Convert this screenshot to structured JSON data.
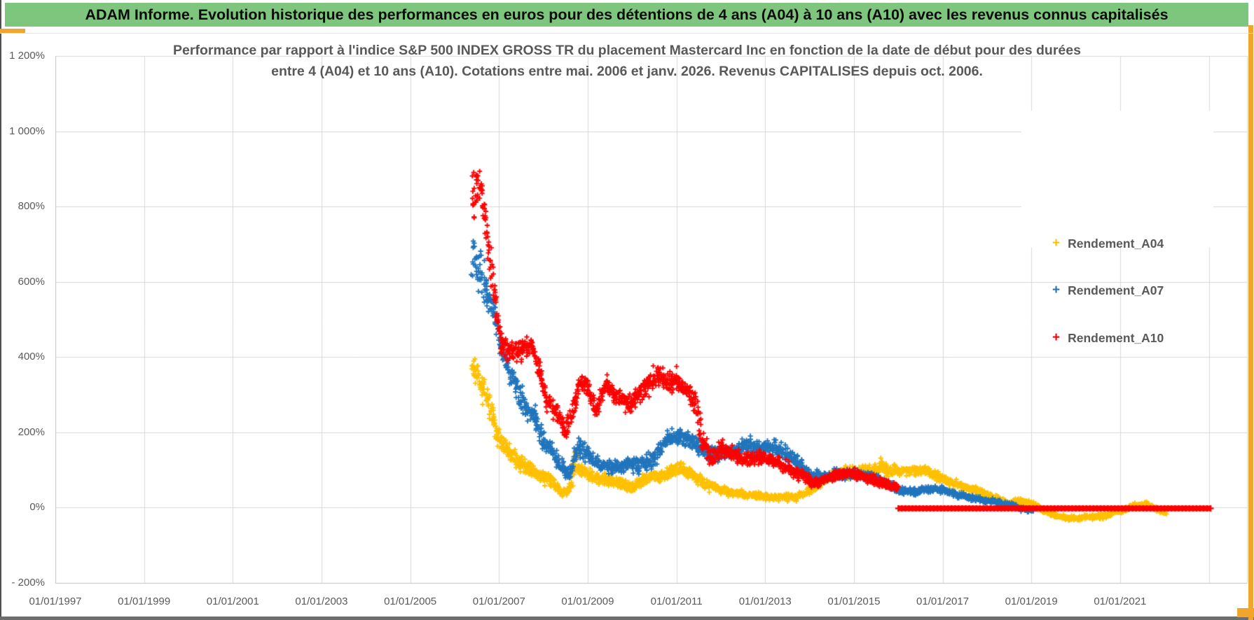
{
  "header": {
    "title": "ADAM Informe. Evolution historique des performances en euros pour des détentions de 4 ans (A04) à 10 ans (A10) avec les revenus connus capitalisés",
    "bg_color": "#7EC67D",
    "text_color": "#0b0b0b"
  },
  "page": {
    "gold_border_color": "#F0A62C",
    "left_edge_color": "#4f4f4f",
    "bottom_edge_color": "#6e6e6e"
  },
  "chart_data": {
    "type": "scatter",
    "title_line1": "Performance par rapport à l'indice S&P 500 INDEX GROSS TR  du placement Mastercard Inc en fonction de la date de début pour des durées",
    "title_line2": "entre 4 (A04) et 10 ans (A10). Cotations entre mai. 2006 et janv. 2026. Revenus CAPITALISES depuis oct. 2006.",
    "grid": true,
    "grid_color": "#D9D9D9",
    "axis_line_color": "#BFBFBF",
    "x_axis": {
      "type": "date",
      "min_year": 1997,
      "max_year": 2023.86,
      "tick_step_years": 2,
      "tick_labels": [
        "01/01/1997",
        "01/01/1999",
        "01/01/2001",
        "01/01/2003",
        "01/01/2005",
        "01/01/2007",
        "01/01/2009",
        "01/01/2011",
        "01/01/2013",
        "01/01/2015",
        "01/01/2017",
        "01/01/2019",
        "01/01/2021"
      ]
    },
    "y_axis": {
      "min": -200,
      "max": 1200,
      "step": 200,
      "unit": "%",
      "tick_labels": [
        "- 200%",
        "0%",
        "200%",
        "400%",
        "600%",
        "800%",
        "1 000%",
        "1 200%"
      ]
    },
    "legend": {
      "position": "right-overlay",
      "entries": [
        "Rendement_A04",
        "Rendement_A07",
        "Rendement_A10"
      ]
    },
    "series": [
      {
        "name": "Rendement_A04",
        "color": "#FFC000",
        "marker": "plus",
        "points_format": [
          "start_year_decimal",
          "performance_pct_center",
          "vertical_spread_pct"
        ],
        "points": [
          [
            2006.4,
            385,
            45
          ],
          [
            2006.6,
            330,
            50
          ],
          [
            2006.8,
            270,
            55
          ],
          [
            2007.0,
            180,
            35
          ],
          [
            2007.2,
            155,
            38
          ],
          [
            2007.45,
            120,
            30
          ],
          [
            2007.7,
            100,
            28
          ],
          [
            2007.95,
            85,
            25
          ],
          [
            2008.2,
            70,
            22
          ],
          [
            2008.45,
            40,
            18
          ],
          [
            2008.6,
            50,
            20
          ],
          [
            2008.72,
            120,
            55
          ],
          [
            2008.9,
            95,
            25
          ],
          [
            2009.1,
            80,
            20
          ],
          [
            2009.4,
            75,
            20
          ],
          [
            2009.7,
            65,
            20
          ],
          [
            2010.0,
            52,
            20
          ],
          [
            2010.3,
            80,
            25
          ],
          [
            2010.6,
            82,
            22
          ],
          [
            2010.9,
            100,
            25
          ],
          [
            2011.1,
            105,
            25
          ],
          [
            2011.3,
            92,
            22
          ],
          [
            2011.6,
            65,
            22
          ],
          [
            2011.9,
            52,
            17
          ],
          [
            2012.2,
            40,
            15
          ],
          [
            2012.6,
            34,
            14
          ],
          [
            2013.0,
            30,
            13
          ],
          [
            2013.4,
            28,
            13
          ],
          [
            2013.7,
            28,
            13
          ],
          [
            2014.0,
            45,
            15
          ],
          [
            2014.4,
            80,
            20
          ],
          [
            2014.8,
            92,
            22
          ],
          [
            2015.2,
            95,
            22
          ],
          [
            2015.55,
            100,
            25
          ],
          [
            2015.63,
            115,
            30
          ],
          [
            2015.75,
            98,
            22
          ],
          [
            2016.0,
            98,
            20
          ],
          [
            2016.4,
            100,
            18
          ],
          [
            2016.7,
            95,
            20
          ],
          [
            2017.0,
            75,
            18
          ],
          [
            2017.4,
            58,
            15
          ],
          [
            2017.8,
            45,
            14
          ],
          [
            2018.1,
            28,
            13
          ],
          [
            2018.5,
            12,
            12
          ],
          [
            2018.8,
            20,
            12
          ],
          [
            2019.1,
            3,
            10
          ],
          [
            2019.4,
            -15,
            10
          ],
          [
            2019.8,
            -29,
            10
          ],
          [
            2020.2,
            -26,
            10
          ],
          [
            2020.6,
            -22,
            10
          ],
          [
            2021.0,
            -10,
            10
          ],
          [
            2021.3,
            5,
            9
          ],
          [
            2021.6,
            8,
            9
          ],
          [
            2021.8,
            -3,
            9
          ],
          [
            2022.05,
            -15,
            8
          ]
        ]
      },
      {
        "name": "Rendement_A07",
        "color": "#2175BC",
        "marker": "plus",
        "points_format": [
          "start_year_decimal",
          "performance_pct_center",
          "vertical_spread_pct"
        ],
        "points": [
          [
            2006.4,
            690,
            110
          ],
          [
            2006.55,
            640,
            90
          ],
          [
            2006.7,
            580,
            60
          ],
          [
            2006.9,
            510,
            50
          ],
          [
            2007.05,
            425,
            45
          ],
          [
            2007.2,
            375,
            45
          ],
          [
            2007.4,
            315,
            45
          ],
          [
            2007.6,
            265,
            40
          ],
          [
            2007.8,
            245,
            40
          ],
          [
            2008.0,
            175,
            38
          ],
          [
            2008.2,
            150,
            32
          ],
          [
            2008.45,
            100,
            30
          ],
          [
            2008.6,
            88,
            26
          ],
          [
            2008.8,
            165,
            40
          ],
          [
            2009.0,
            140,
            30
          ],
          [
            2009.3,
            115,
            26
          ],
          [
            2009.6,
            105,
            25
          ],
          [
            2009.9,
            120,
            28
          ],
          [
            2010.2,
            110,
            30
          ],
          [
            2010.5,
            130,
            30
          ],
          [
            2010.8,
            185,
            32
          ],
          [
            2011.1,
            190,
            28
          ],
          [
            2011.35,
            180,
            28
          ],
          [
            2011.6,
            150,
            40
          ],
          [
            2011.8,
            140,
            28
          ],
          [
            2012.0,
            142,
            28
          ],
          [
            2012.3,
            148,
            28
          ],
          [
            2012.6,
            168,
            30
          ],
          [
            2012.9,
            160,
            30
          ],
          [
            2013.2,
            158,
            30
          ],
          [
            2013.5,
            140,
            28
          ],
          [
            2013.8,
            115,
            25
          ],
          [
            2014.0,
            85,
            25
          ],
          [
            2014.3,
            80,
            20
          ],
          [
            2014.6,
            88,
            20
          ],
          [
            2015.0,
            90,
            18
          ],
          [
            2015.4,
            85,
            18
          ],
          [
            2015.7,
            68,
            18
          ],
          [
            2016.0,
            46,
            16
          ],
          [
            2016.3,
            42,
            14
          ],
          [
            2016.7,
            50,
            12
          ],
          [
            2017.0,
            48,
            12
          ],
          [
            2017.3,
            35,
            10
          ],
          [
            2017.7,
            25,
            10
          ],
          [
            2018.0,
            18,
            10
          ],
          [
            2018.3,
            12,
            10
          ],
          [
            2018.6,
            5,
            10
          ],
          [
            2018.85,
            -5,
            9
          ],
          [
            2019.05,
            -9,
            8
          ]
        ]
      },
      {
        "name": "Rendement_A10",
        "color": "#FF0000",
        "marker": "plus",
        "points_format": [
          "start_year_decimal",
          "performance_pct_center",
          "vertical_spread_pct"
        ],
        "points": [
          [
            2006.4,
            830,
            110
          ],
          [
            2006.6,
            850,
            100
          ],
          [
            2006.75,
            700,
            80
          ],
          [
            2006.9,
            580,
            60
          ],
          [
            2007.0,
            465,
            45
          ],
          [
            2007.1,
            430,
            50
          ],
          [
            2007.3,
            410,
            55
          ],
          [
            2007.5,
            420,
            40
          ],
          [
            2007.75,
            430,
            30
          ],
          [
            2007.9,
            370,
            40
          ],
          [
            2008.1,
            280,
            35
          ],
          [
            2008.3,
            255,
            30
          ],
          [
            2008.5,
            195,
            30
          ],
          [
            2008.7,
            275,
            40
          ],
          [
            2008.85,
            340,
            40
          ],
          [
            2009.0,
            315,
            35
          ],
          [
            2009.2,
            250,
            35
          ],
          [
            2009.4,
            330,
            30
          ],
          [
            2009.6,
            300,
            35
          ],
          [
            2009.8,
            285,
            35
          ],
          [
            2010.0,
            275,
            35
          ],
          [
            2010.3,
            320,
            40
          ],
          [
            2010.6,
            355,
            45
          ],
          [
            2010.8,
            330,
            40
          ],
          [
            2011.0,
            340,
            40
          ],
          [
            2011.2,
            315,
            35
          ],
          [
            2011.45,
            280,
            45
          ],
          [
            2011.6,
            175,
            55
          ],
          [
            2011.8,
            120,
            40
          ],
          [
            2012.0,
            160,
            30
          ],
          [
            2012.2,
            145,
            28
          ],
          [
            2012.5,
            125,
            25
          ],
          [
            2012.8,
            132,
            25
          ],
          [
            2013.0,
            130,
            22
          ],
          [
            2013.3,
            118,
            25
          ],
          [
            2013.6,
            100,
            22
          ],
          [
            2013.9,
            80,
            20
          ],
          [
            2014.1,
            65,
            18
          ],
          [
            2014.4,
            78,
            18
          ],
          [
            2014.7,
            88,
            18
          ],
          [
            2015.0,
            90,
            18
          ],
          [
            2015.3,
            78,
            18
          ],
          [
            2015.6,
            68,
            18
          ],
          [
            2015.8,
            60,
            15
          ],
          [
            2016.0,
            54,
            12
          ]
        ],
        "flat_tail": {
          "from": 2016.0,
          "to": 2023.05,
          "value": -2,
          "note": "dense solid line of markers just below 0%"
        }
      }
    ]
  }
}
